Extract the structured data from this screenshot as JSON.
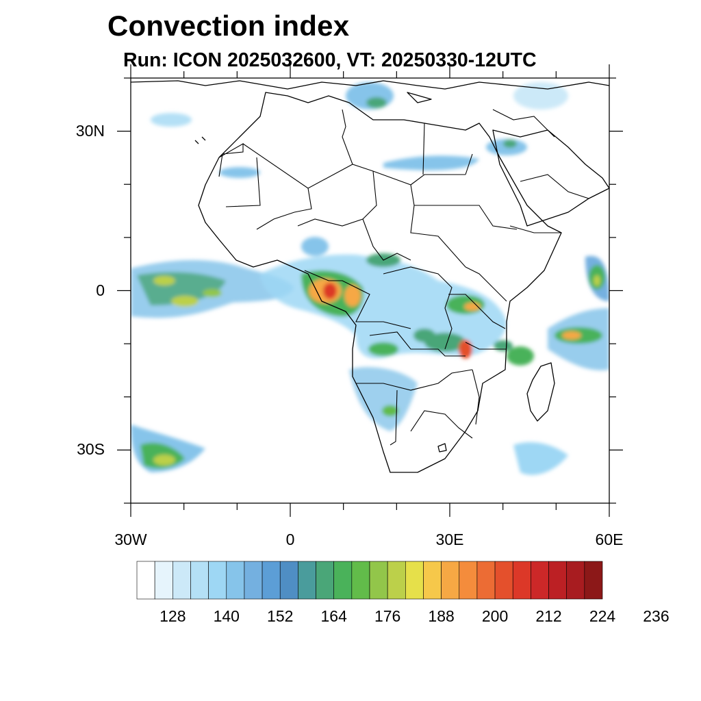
{
  "title": "Convection index",
  "subtitle": "Run: ICON 2025032600,  VT: 20250330-12UTC",
  "map": {
    "lon_range": [
      -30,
      60
    ],
    "lat_range": [
      -40,
      40
    ],
    "lat_ticks": [
      {
        "value": 30,
        "label": "30N"
      },
      {
        "value": 0,
        "label": "0"
      },
      {
        "value": -30,
        "label": "30S"
      }
    ],
    "lon_ticks": [
      {
        "value": -30,
        "label": "30W"
      },
      {
        "value": 0,
        "label": "0"
      },
      {
        "value": 30,
        "label": "30E"
      },
      {
        "value": 60,
        "label": "60E"
      }
    ]
  },
  "colorbar": {
    "colors": [
      "#ffffff",
      "#e6f4fc",
      "#cce9f8",
      "#b4e0f6",
      "#9ed7f4",
      "#86c4ea",
      "#74b0e0",
      "#5c9ed6",
      "#4f8ec4",
      "#4a9c9c",
      "#4aa678",
      "#4ab25a",
      "#62bc4a",
      "#92c64a",
      "#bcd04a",
      "#e6e04a",
      "#f6c84a",
      "#f6a844",
      "#f48c3c",
      "#ec6c34",
      "#e4502c",
      "#dc3828",
      "#cc2828",
      "#bc2024",
      "#a81c20",
      "#8c1818"
    ],
    "labels": [
      "128",
      "140",
      "152",
      "164",
      "176",
      "188",
      "200",
      "212",
      "224",
      "236"
    ]
  }
}
